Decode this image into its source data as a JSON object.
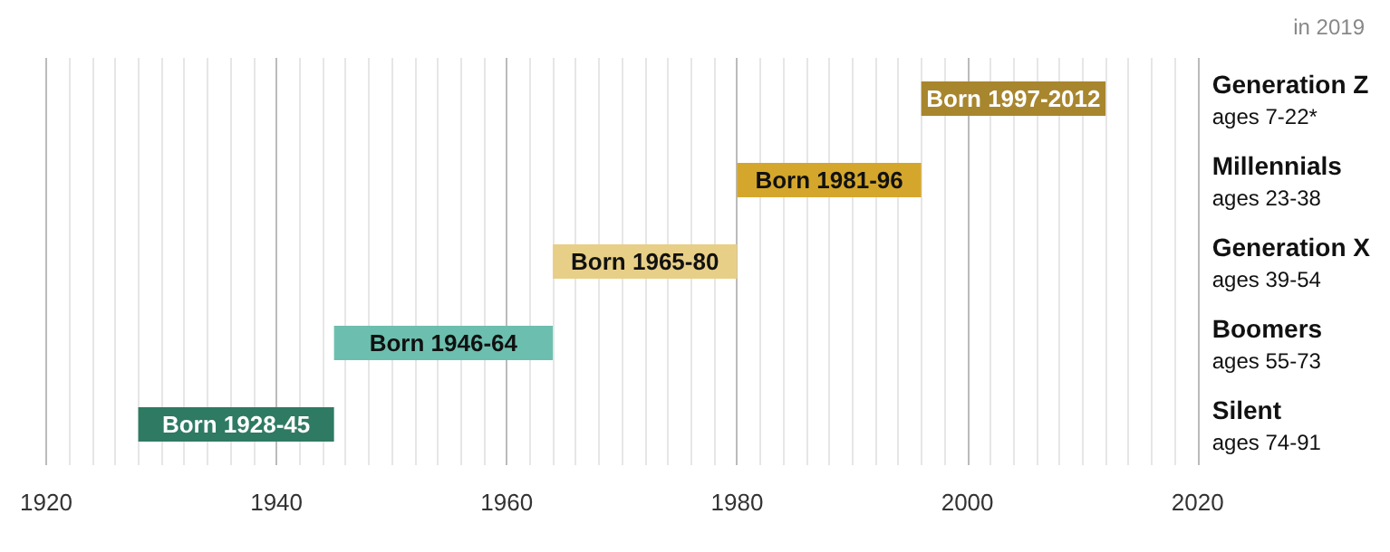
{
  "chart_data": {
    "type": "bar",
    "orientation": "horizontal",
    "categories": [
      "Generation Z\nages 7-22*",
      "Millennials\nages 23-38",
      "Generation X\nages 39-54",
      "Boomers\nages 55-73",
      "Silent\nages 74-91"
    ],
    "base": [
      1996,
      1980,
      1964,
      1945,
      1928
    ],
    "values": [
      16,
      16,
      16,
      19,
      17
    ],
    "colors": [
      "#a8862e",
      "#d4a72c",
      "#e8cf88",
      "#6cbfae",
      "#2e7a62"
    ],
    "value_labels": [
      "Born 1997-2012",
      "Born 1981-96",
      "Born 1965-80",
      "Born 1946-64",
      "Born 1928-45"
    ],
    "xlim": [
      1920,
      2020
    ],
    "xticks": [
      1920,
      1940,
      1960,
      1980,
      2000,
      2020
    ],
    "grid": "x",
    "annotations": [
      "in 2019"
    ]
  }
}
